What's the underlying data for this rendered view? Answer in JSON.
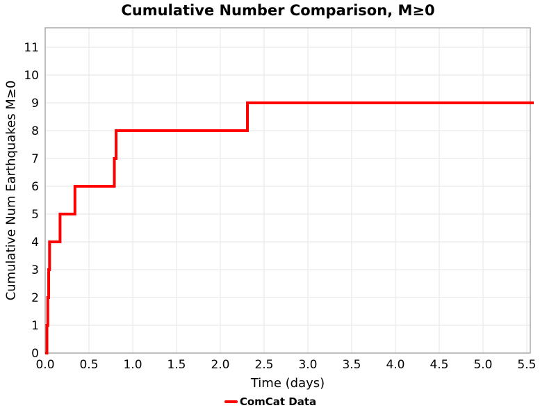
{
  "page": {
    "background": "#ffffff"
  },
  "chart_data": {
    "type": "line",
    "subtype": "step-post",
    "title": "Cumulative Number Comparison, M≥0",
    "xlabel": "Time (days)",
    "ylabel": "Cumulative Num Earthquakes M≥0",
    "xlim": [
      0,
      5.54
    ],
    "ylim": [
      0,
      11.7
    ],
    "grid": {
      "show": true,
      "color": "#e9e9e9"
    },
    "frame_color": "#a9a9a9",
    "tick_font_px": 17,
    "xticks": [
      {
        "v": 0.0,
        "label": "0.0"
      },
      {
        "v": 0.5,
        "label": "0.5"
      },
      {
        "v": 1.0,
        "label": "1.0"
      },
      {
        "v": 1.5,
        "label": "1.5"
      },
      {
        "v": 2.0,
        "label": "2.0"
      },
      {
        "v": 2.5,
        "label": "2.5"
      },
      {
        "v": 3.0,
        "label": "3.0"
      },
      {
        "v": 3.5,
        "label": "3.5"
      },
      {
        "v": 4.0,
        "label": "4.0"
      },
      {
        "v": 4.5,
        "label": "4.5"
      },
      {
        "v": 5.0,
        "label": "5.0"
      },
      {
        "v": 5.5,
        "label": "5.5"
      }
    ],
    "yticks": [
      {
        "v": 0,
        "label": "0"
      },
      {
        "v": 1,
        "label": "1"
      },
      {
        "v": 2,
        "label": "2"
      },
      {
        "v": 3,
        "label": "3"
      },
      {
        "v": 4,
        "label": "4"
      },
      {
        "v": 5,
        "label": "5"
      },
      {
        "v": 6,
        "label": "6"
      },
      {
        "v": 7,
        "label": "7"
      },
      {
        "v": 8,
        "label": "8"
      },
      {
        "v": 9,
        "label": "9"
      },
      {
        "v": 10,
        "label": "10"
      },
      {
        "v": 11,
        "label": "11"
      }
    ],
    "legend": {
      "position": "bottom-center",
      "entries": [
        {
          "label": "ComCat Data",
          "color": "#ff0000"
        }
      ]
    },
    "series": [
      {
        "name": "ComCat Data",
        "color": "#ff0000",
        "line_width": 4,
        "step": "post",
        "points": [
          [
            0.0,
            0
          ],
          [
            0.02,
            1
          ],
          [
            0.03,
            2
          ],
          [
            0.04,
            3
          ],
          [
            0.05,
            4
          ],
          [
            0.17,
            5
          ],
          [
            0.34,
            6
          ],
          [
            0.79,
            7
          ],
          [
            0.81,
            8
          ],
          [
            2.31,
            9
          ],
          [
            5.58,
            9
          ]
        ]
      }
    ]
  }
}
